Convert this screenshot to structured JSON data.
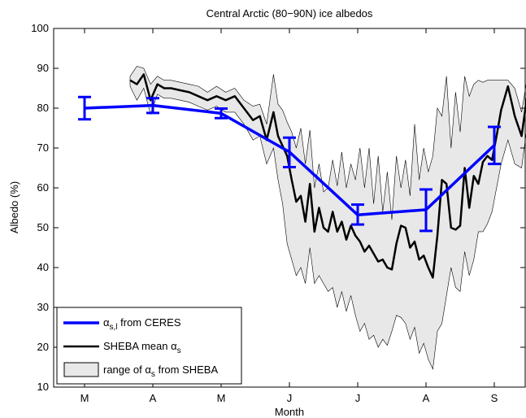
{
  "chart_data": {
    "type": "line",
    "title": "Central Arctic (80−90N) ice albedos",
    "xlabel": "Month",
    "ylabel": "Albedo (%)",
    "x_ticks": [
      "M",
      "A",
      "M",
      "J",
      "J",
      "A",
      "S"
    ],
    "xlim": [
      0,
      13.0
    ],
    "ylim": [
      10,
      100
    ],
    "y_ticks": [
      10,
      20,
      30,
      40,
      50,
      60,
      70,
      80,
      90,
      100
    ],
    "legend_position": "bottom-left",
    "legend": [
      {
        "main": "α",
        "sub": "s,l",
        "rest": " from CERES",
        "kind": "line-blue"
      },
      {
        "main": "SHEBA mean α",
        "sub": "s",
        "rest": "",
        "kind": "line-black"
      },
      {
        "main": "range of α",
        "sub": "s",
        "rest": " from SHEBA",
        "kind": "patch"
      }
    ],
    "colors": {
      "ceres": "#0000ff",
      "sheba_mean": "#000000",
      "range_fill": "#e8e8e8",
      "range_edge": "#000000"
    },
    "series": [
      {
        "id": "ceres",
        "x": [
          0.5,
          2.0,
          3.5,
          5.0,
          6.5,
          8.0,
          9.5
        ],
        "values": [
          80.0,
          80.7,
          78.7,
          69.0,
          53.2,
          54.5,
          70.7
        ],
        "err_low": [
          77.2,
          78.8,
          77.5,
          65.2,
          50.8,
          49.2,
          66.0
        ],
        "err_high": [
          82.8,
          82.5,
          79.9,
          72.6,
          55.8,
          59.6,
          75.3
        ]
      },
      {
        "id": "sheba_mean",
        "x": [
          1.5,
          1.65,
          1.8,
          1.95,
          2.1,
          2.25,
          2.4,
          2.6,
          2.8,
          3.0,
          3.2,
          3.4,
          3.6,
          3.8,
          4.0,
          4.2,
          4.35,
          4.5,
          4.65,
          4.75,
          4.85,
          4.95,
          5.05,
          5.15,
          5.25,
          5.35,
          5.45,
          5.55,
          5.65,
          5.75,
          5.85,
          5.95,
          6.05,
          6.15,
          6.25,
          6.35,
          6.45,
          6.55,
          6.65,
          6.75,
          6.85,
          6.95,
          7.05,
          7.15,
          7.25,
          7.35,
          7.45,
          7.55,
          7.65,
          7.75,
          7.85,
          7.95,
          8.05,
          8.15,
          8.25,
          8.35,
          8.45,
          8.55,
          8.65,
          8.75,
          8.85,
          8.95,
          9.05,
          9.15,
          9.25,
          9.35,
          9.45,
          9.55,
          9.65,
          9.8,
          9.95,
          10.1,
          10.25
        ],
        "values": [
          87.0,
          86.0,
          88.5,
          82.0,
          86.0,
          85.0,
          85.0,
          84.5,
          84.0,
          83.0,
          82.0,
          83.0,
          82.0,
          83.0,
          80.0,
          77.0,
          78.0,
          72.0,
          79.0,
          73.0,
          70.5,
          68.0,
          62.0,
          56.5,
          58.0,
          51.5,
          61.0,
          49.0,
          55.0,
          50.0,
          49.0,
          54.0,
          49.0,
          51.5,
          47.0,
          50.5,
          48.0,
          46.5,
          44.0,
          45.5,
          43.5,
          41.5,
          42.0,
          40.0,
          39.5,
          46.0,
          50.5,
          50.0,
          45.0,
          46.5,
          42.0,
          43.0,
          40.0,
          37.5,
          48.0,
          62.0,
          61.0,
          50.0,
          49.5,
          50.5,
          65.0,
          55.0,
          63.0,
          61.0,
          66.5,
          68.0,
          67.0,
          73.0,
          79.5,
          85.5,
          78.0,
          73.0,
          85.5
        ]
      },
      {
        "id": "sheba_range",
        "x": [
          1.5,
          1.65,
          1.8,
          1.95,
          2.1,
          2.25,
          2.4,
          2.6,
          2.8,
          3.0,
          3.2,
          3.4,
          3.6,
          3.8,
          4.0,
          4.2,
          4.35,
          4.5,
          4.65,
          4.75,
          4.85,
          4.95,
          5.05,
          5.15,
          5.25,
          5.35,
          5.45,
          5.55,
          5.65,
          5.75,
          5.85,
          5.95,
          6.05,
          6.15,
          6.25,
          6.35,
          6.45,
          6.55,
          6.65,
          6.75,
          6.85,
          6.95,
          7.05,
          7.15,
          7.25,
          7.35,
          7.45,
          7.55,
          7.65,
          7.75,
          7.85,
          7.95,
          8.05,
          8.15,
          8.25,
          8.35,
          8.45,
          8.55,
          8.65,
          8.75,
          8.85,
          8.95,
          9.05,
          9.15,
          9.25,
          9.35,
          9.45,
          9.55,
          9.65,
          9.8,
          9.95,
          10.1,
          10.25
        ],
        "upper": [
          88.0,
          90.5,
          90.0,
          86.0,
          88.0,
          87.0,
          87.0,
          86.5,
          86.0,
          85.5,
          84.0,
          85.5,
          84.0,
          85.0,
          82.0,
          80.5,
          81.0,
          76.0,
          88.5,
          81.0,
          79.5,
          76.5,
          74.0,
          70.0,
          75.0,
          66.0,
          74.5,
          60.0,
          66.0,
          59.0,
          60.0,
          67.0,
          60.5,
          69.0,
          60.0,
          66.0,
          62.0,
          70.0,
          60.0,
          70.0,
          56.0,
          68.0,
          54.0,
          64.0,
          52.0,
          68.0,
          60.0,
          67.0,
          58.0,
          76.0,
          62.0,
          70.0,
          64.0,
          68.0,
          80.0,
          78.0,
          88.0,
          70.0,
          84.0,
          74.0,
          88.0,
          83.0,
          86.0,
          87.0,
          86.5,
          87.0,
          87.0,
          87.0,
          87.0,
          87.0,
          85.0,
          79.0,
          89.5
        ],
        "lower": [
          85.5,
          82.0,
          85.0,
          78.5,
          83.5,
          82.5,
          82.5,
          82.0,
          81.5,
          80.5,
          79.5,
          80.5,
          79.0,
          79.0,
          76.0,
          72.0,
          73.0,
          66.0,
          70.0,
          62.0,
          56.0,
          46.0,
          42.0,
          38.0,
          40.0,
          36.0,
          45.0,
          36.0,
          38.0,
          36.0,
          34.0,
          35.0,
          30.0,
          34.0,
          29.0,
          33.0,
          28.0,
          24.0,
          26.0,
          22.0,
          23.0,
          20.0,
          22.0,
          20.5,
          24.0,
          28.0,
          27.5,
          26.0,
          22.0,
          25.0,
          18.5,
          21.0,
          17.0,
          14.5,
          24.0,
          26.0,
          33.0,
          40.0,
          35.0,
          34.0,
          44.0,
          38.0,
          42.0,
          49.0,
          49.0,
          51.0,
          54.0,
          60.0,
          66.0,
          72.0,
          66.0,
          65.0,
          78.0
        ]
      }
    ]
  }
}
